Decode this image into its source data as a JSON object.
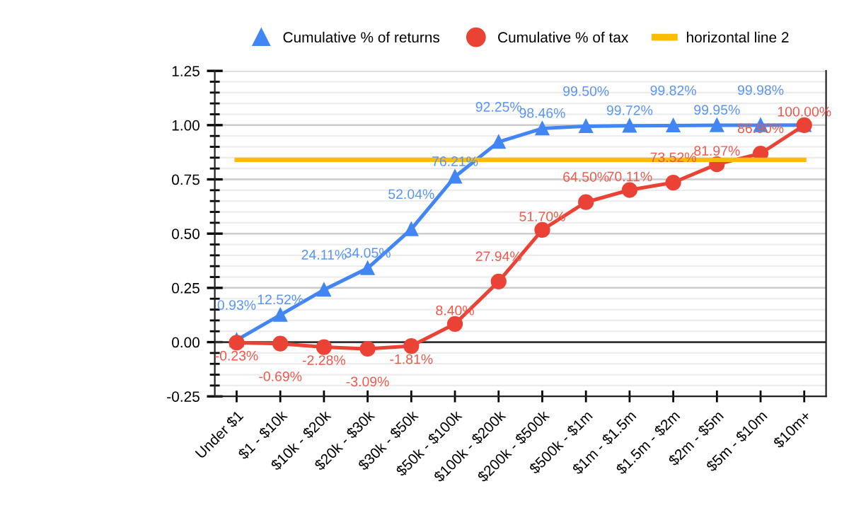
{
  "chart_data": {
    "type": "line",
    "categories": [
      "Under $1",
      "$1 - $10k",
      "$10k - $20k",
      "$20k - $30k",
      "$30k - $50k",
      "$50k - $100k",
      "$100k - $200k",
      "$200k - $500k",
      "$500k - $1m",
      "$1m - $1.5m",
      "$1.5m - $2m",
      "$2m - $5m",
      "$5m - $10m",
      "$10m+"
    ],
    "series": [
      {
        "name": "Cumulative % of returns",
        "color": "#4285f4",
        "marker": "triangle",
        "values": [
          0.0093,
          0.1252,
          0.2411,
          0.3405,
          0.5204,
          0.7621,
          0.9225,
          0.9846,
          0.995,
          0.9972,
          0.9982,
          0.9995,
          0.9998,
          1.0
        ],
        "value_labels": [
          "0.93%",
          "12.52%",
          "24.11%",
          "34.05%",
          "52.04%",
          "76.21%",
          "92.25%",
          "98.46%",
          "99.50%",
          "99.72%",
          "99.82%",
          "99.95%",
          "99.98%",
          null
        ]
      },
      {
        "name": "Cumulative % of tax",
        "color": "#ea4335",
        "marker": "circle",
        "values": [
          -0.0023,
          -0.0069,
          -0.0228,
          -0.0309,
          -0.0181,
          0.084,
          0.2794,
          0.517,
          0.645,
          0.7011,
          0.7352,
          0.8197,
          0.869,
          1.0
        ],
        "value_labels": [
          "-0.23%",
          "-0.69%",
          "-2.28%",
          "-3.09%",
          "-1.81%",
          "8.40%",
          "27.94%",
          "51.70%",
          "64.50%",
          "70.11%",
          "73.52%",
          "81.97%",
          "86.90%",
          "100.00%"
        ]
      },
      {
        "name": "horizontal line 2",
        "color": "#fbbc04",
        "marker": "none",
        "values": [
          0.84,
          0.84,
          0.84,
          0.84,
          0.84,
          0.84,
          0.84,
          0.84,
          0.84,
          0.84,
          0.84,
          0.84,
          0.84,
          0.84
        ]
      }
    ],
    "ylim": [
      -0.25,
      1.25
    ],
    "yticks": [
      {
        "value": -0.25,
        "label": "-0.25"
      },
      {
        "value": 0,
        "label": "0.00"
      },
      {
        "value": 0.25,
        "label": "0.25"
      },
      {
        "value": 0.5,
        "label": "0.50"
      },
      {
        "value": 0.75,
        "label": "0.75"
      },
      {
        "value": 1.0,
        "label": "1.00"
      },
      {
        "value": 1.25,
        "label": "1.25"
      }
    ],
    "ref_lines": [
      {
        "axis": "y",
        "value": 0,
        "color": "#333333"
      }
    ],
    "grid": "y",
    "legend": "top"
  }
}
